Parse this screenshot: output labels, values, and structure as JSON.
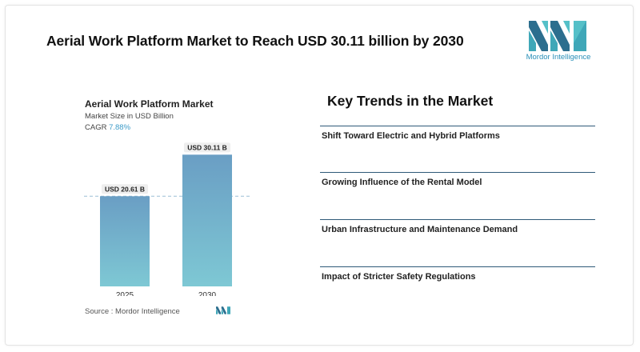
{
  "header": {
    "title": "Aerial Work Platform Market to Reach USD 30.11 billion by 2030",
    "brand_name": "Mordor Intelligence",
    "brand_icon": "mordor-logo-icon"
  },
  "chart_panel": {
    "title": "Aerial Work Platform Market",
    "subtitle": "Market Size in USD Billion",
    "cagr_label": "CAGR",
    "cagr_value": "7.88%",
    "source_label": "Source :",
    "source_value": "Mordor Intelligence"
  },
  "chart_data": {
    "type": "bar",
    "title": "Aerial Work Platform Market",
    "subtitle": "Market Size in USD Billion",
    "categories": [
      "2025",
      "2030"
    ],
    "values": [
      20.61,
      30.11
    ],
    "data_labels": [
      "USD 20.61 B",
      "USD 30.11 B"
    ],
    "ylabel": "",
    "xlabel": "",
    "ylim": [
      0,
      32
    ],
    "grid": false,
    "reference_line_value": 20.61,
    "colors": {
      "bar_top": "#6a9ec4",
      "bar_bottom": "#7ec8d4",
      "label_bg": "#eeeeee"
    }
  },
  "trends": {
    "title": "Key Trends in the Market",
    "items": [
      {
        "label": "Shift Toward Electric and Hybrid Platforms"
      },
      {
        "label": "Growing Influence of the Rental Model"
      },
      {
        "label": "Urban Infrastructure and Maintenance Demand"
      },
      {
        "label": "Impact of Stricter Safety Regulations"
      }
    ]
  }
}
